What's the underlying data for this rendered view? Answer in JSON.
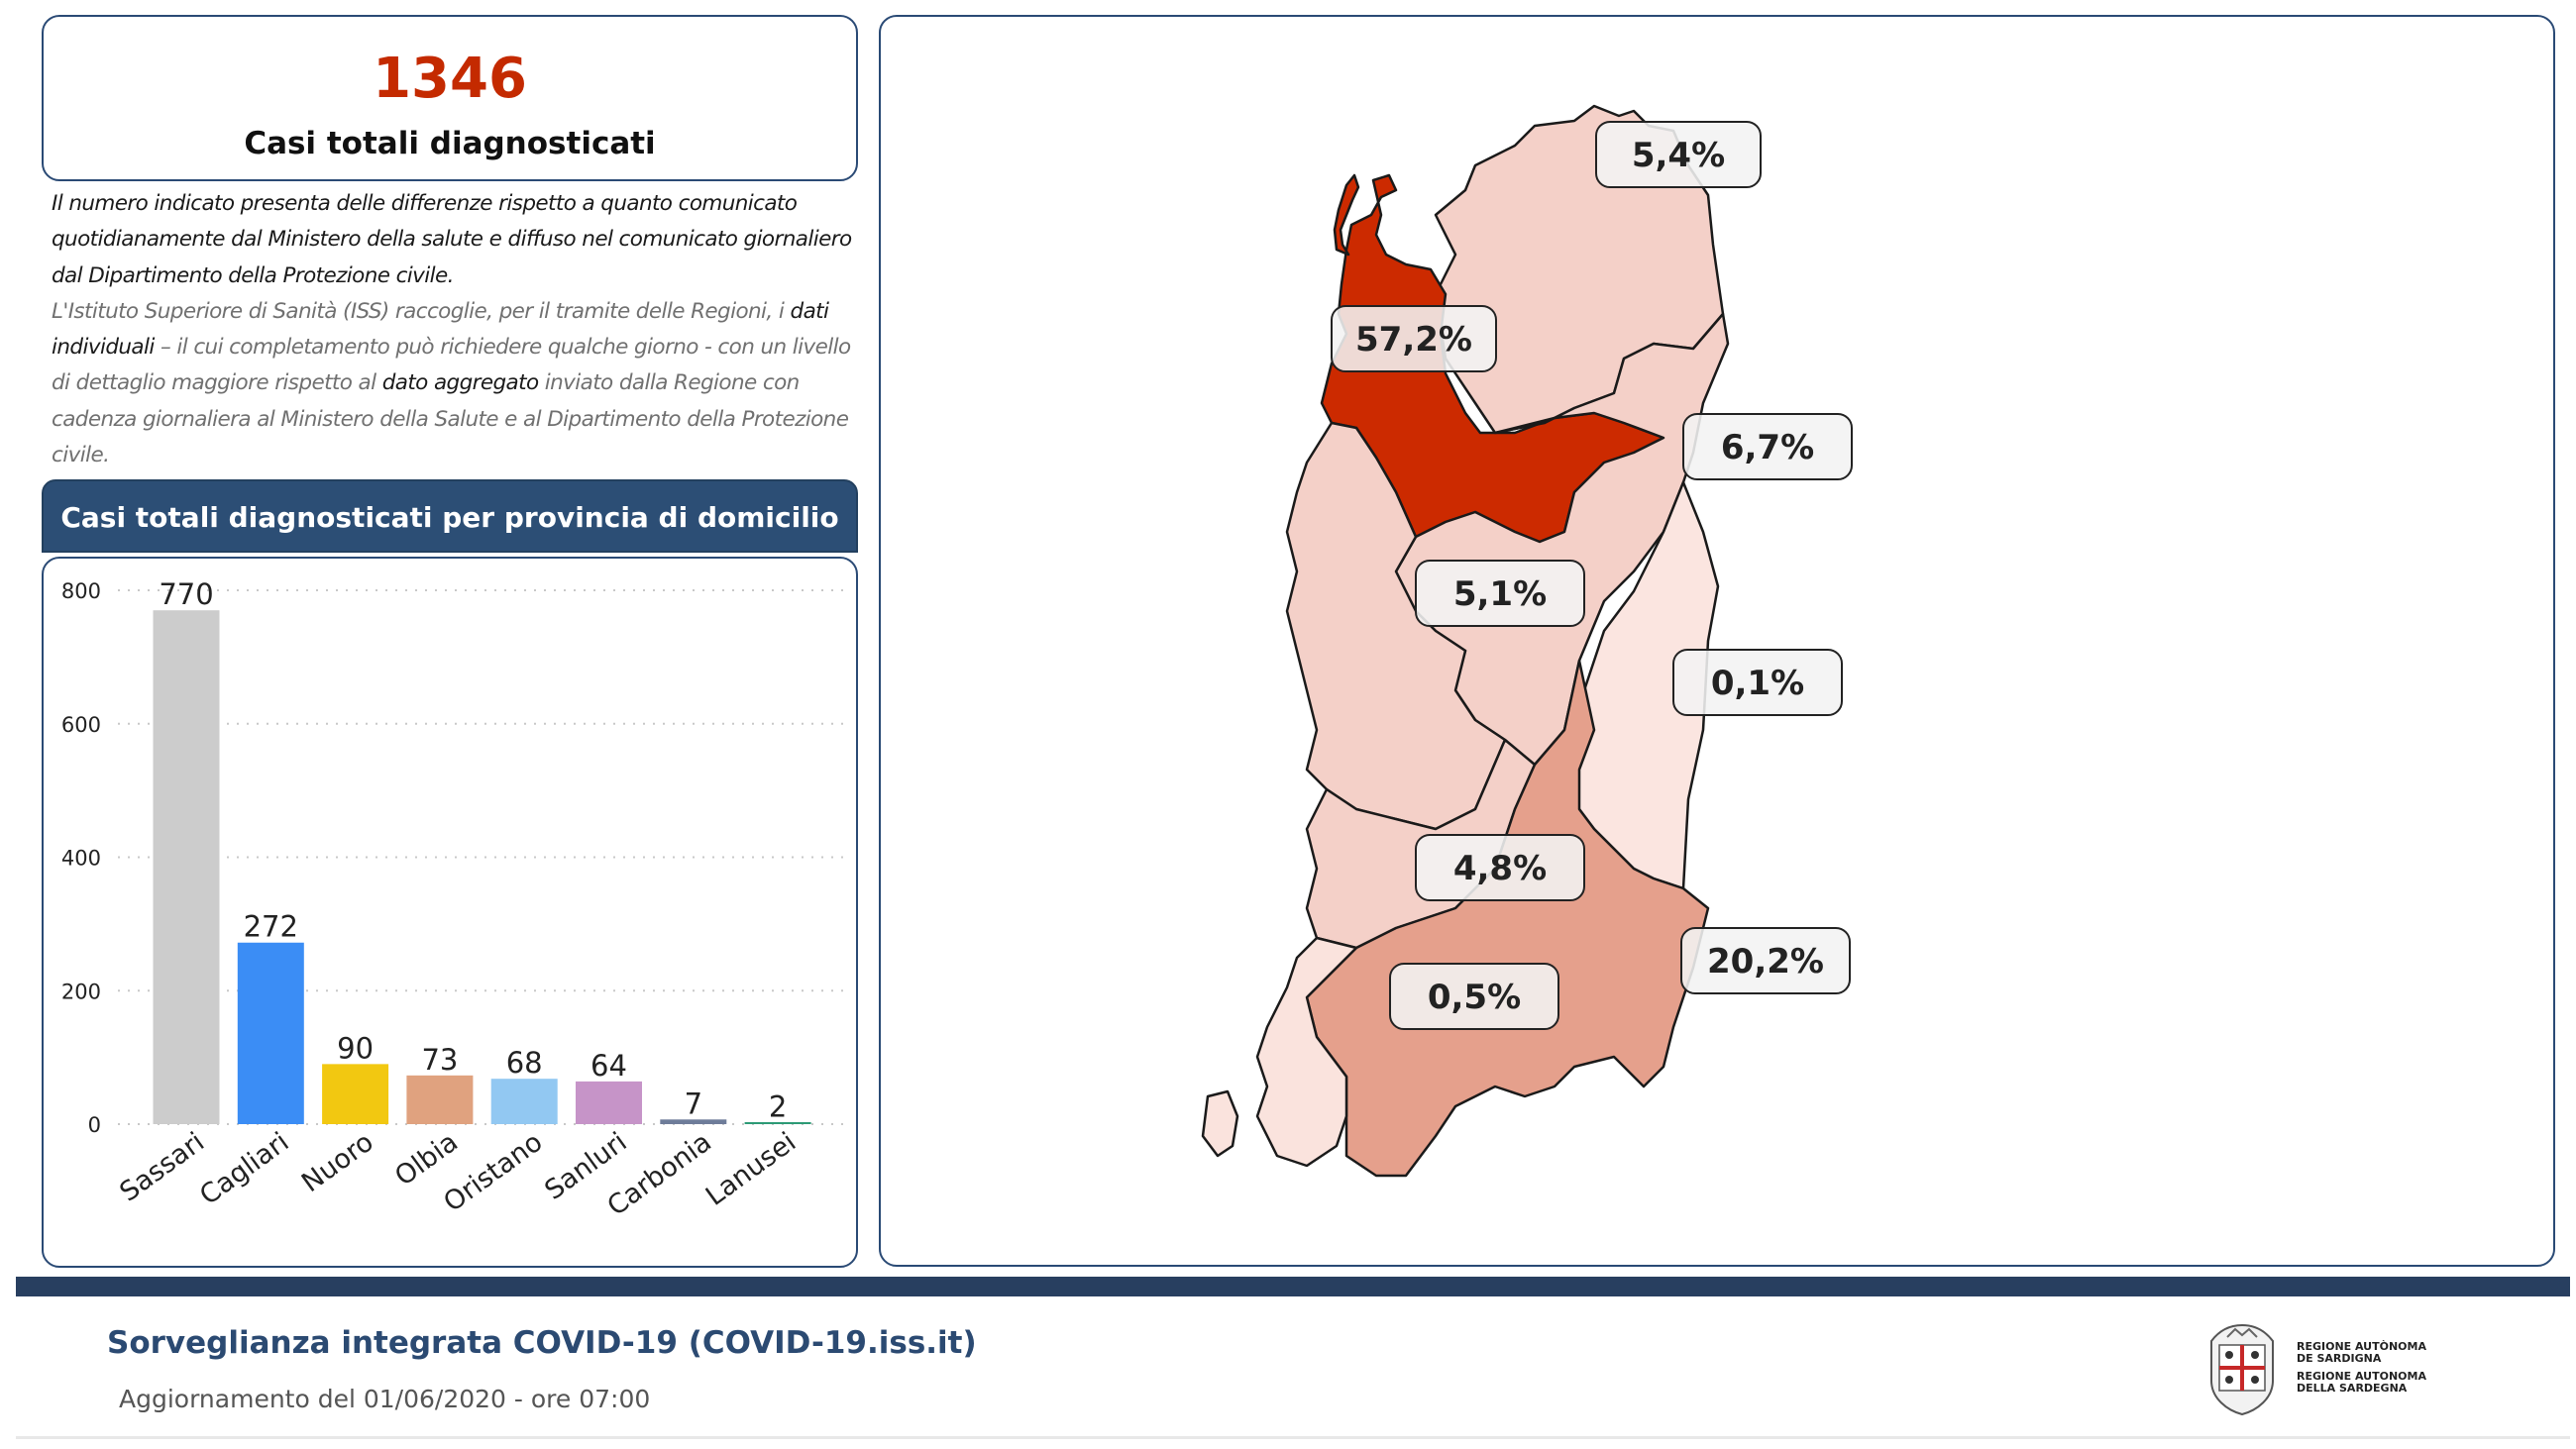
{
  "kpi": {
    "value": "1346",
    "label": "Casi totali diagnosticati"
  },
  "note": {
    "p1": "Il numero indicato presenta delle differenze rispetto a quanto comunicato quotidianamente dal Ministero della salute e diffuso nel comunicato giornaliero dal Dipartimento della Protezione civile.",
    "p2_a": "L'Istituto Superiore di Sanità (ISS) raccoglie, per il tramite delle Regioni, i ",
    "p2_b": "dati individuali",
    "p2_c": " – il cui completamento può richiedere qualche giorno - con un livello di dettaglio maggiore rispetto al ",
    "p2_d": "dato aggregato",
    "p2_e": " inviato dalla Regione con cadenza giornaliera al Ministero della Salute e al Dipartimento della Protezione civile."
  },
  "chart_header": "Casi totali diagnosticati per provincia di domicilio",
  "chart_data": {
    "type": "bar",
    "categories": [
      "Sassari",
      "Cagliari",
      "Nuoro",
      "Olbia",
      "Oristano",
      "Sanluri",
      "Carbonia",
      "Lanusei"
    ],
    "values": [
      770,
      272,
      90,
      73,
      68,
      64,
      7,
      2
    ],
    "data_labels": [
      "770",
      "272",
      "90",
      "73",
      "68",
      "64",
      "7",
      "2"
    ],
    "colors": [
      "#cccccc",
      "#3b8df5",
      "#f2c811",
      "#e0a27f",
      "#92c8f2",
      "#c694c8",
      "#6e7c99",
      "#2d9a75"
    ],
    "ylim": [
      0,
      800
    ],
    "yticks": [
      0,
      200,
      400,
      600,
      800
    ],
    "ytick_labels": [
      "0",
      "200",
      "400",
      "600",
      "800"
    ],
    "grid": true
  },
  "map": {
    "labels": [
      {
        "province": "Olbia",
        "text": "5,4%"
      },
      {
        "province": "Sassari",
        "text": "57,2%"
      },
      {
        "province": "Nuoro",
        "text": "6,7%"
      },
      {
        "province": "Oristano",
        "text": "5,1%"
      },
      {
        "province": "Lanusei",
        "text": "0,1%"
      },
      {
        "province": "Sanluri",
        "text": "4,8%"
      },
      {
        "province": "Cagliari",
        "text": "20,2%"
      },
      {
        "province": "Carbonia",
        "text": "0,5%"
      }
    ],
    "colors": {
      "Sassari": "#cc2a00",
      "Olbia": "#f4d0c8",
      "Nuoro": "#f4d0c8",
      "Oristano": "#f4d0c8",
      "Lanusei": "#fbe5e0",
      "Sanluri": "#f4d0c8",
      "Cagliari": "#e5a08c",
      "Carbonia": "#fae3dd"
    }
  },
  "footer": {
    "title": "Sorveglianza integrata COVID-19 (COVID-19.iss.it)",
    "update": "Aggiornamento del 01/06/2020 - ore 07:00",
    "logo_line1": "REGIONE AUTÒNOMA",
    "logo_line2": "DE SARDIGNA",
    "logo_line3": "REGIONE AUTONOMA",
    "logo_line4": "DELLA SARDEGNA"
  }
}
